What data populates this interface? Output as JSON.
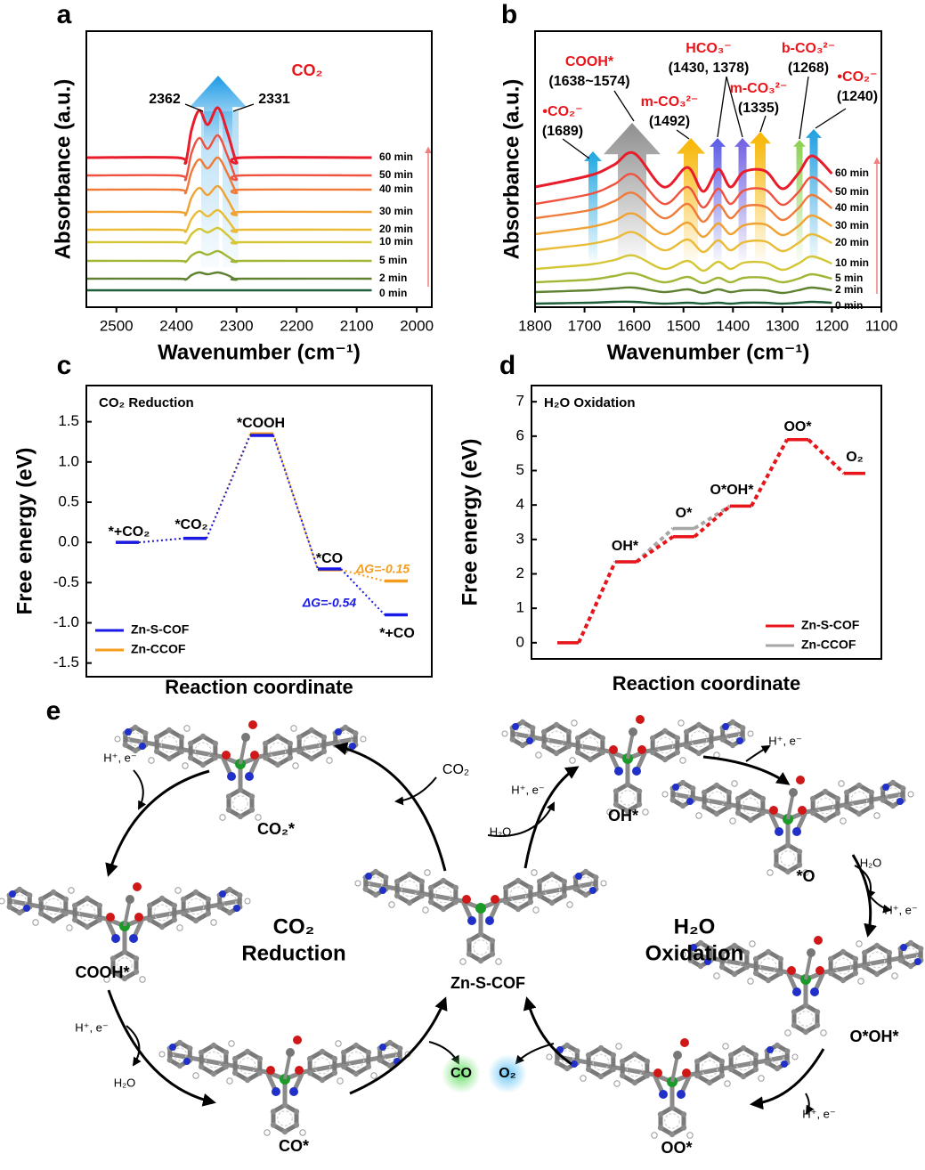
{
  "panels": [
    "a",
    "b",
    "c",
    "d",
    "e"
  ],
  "chart_data": [
    {
      "type": "spectra",
      "title": "CO₂",
      "x_label": "Wavenumber (cm⁻¹)",
      "y_label": "Absorbance (a.u.)",
      "peaks": [
        2362,
        2331
      ],
      "x": [
        2550,
        2400,
        2385,
        2375,
        2362,
        2348,
        2331,
        2315,
        2300,
        2290,
        2075
      ],
      "xlim": [
        2550,
        1975
      ],
      "xticks": [
        2500,
        2400,
        2300,
        2200,
        2100,
        2000
      ],
      "ylim": [
        0,
        310
      ],
      "series": [
        {
          "name": "0 min",
          "color": "#1f5e3a",
          "values": [
            19,
            19,
            19,
            19,
            19,
            19,
            19,
            19,
            19,
            19,
            19
          ]
        },
        {
          "name": "2 min",
          "color": "#5f8230",
          "values": [
            32,
            32,
            31,
            36,
            39,
            37,
            39,
            36,
            31,
            32,
            32
          ]
        },
        {
          "name": "5 min",
          "color": "#a2b636",
          "values": [
            52,
            52,
            51,
            58,
            62,
            59,
            63,
            57,
            51,
            52,
            52
          ]
        },
        {
          "name": "10 min",
          "color": "#d4c634",
          "values": [
            73,
            73,
            72,
            82,
            88,
            84,
            89,
            81,
            72,
            73,
            73
          ]
        },
        {
          "name": "20 min",
          "color": "#e9bb36",
          "values": [
            87,
            87,
            85,
            99,
            108,
            102,
            109,
            98,
            85,
            87,
            87
          ]
        },
        {
          "name": "30 min",
          "color": "#f0a232",
          "values": [
            107,
            107,
            104,
            123,
            134,
            126,
            136,
            121,
            104,
            107,
            107
          ]
        },
        {
          "name": "40 min",
          "color": "#f07a38",
          "values": [
            132,
            132,
            129,
            152,
            166,
            156,
            168,
            150,
            129,
            132,
            132
          ]
        },
        {
          "name": "50 min",
          "color": "#f05240",
          "values": [
            148,
            148,
            144,
            173,
            190,
            178,
            193,
            170,
            144,
            148,
            148
          ]
        },
        {
          "name": "60 min",
          "color": "#e81c2a",
          "values": [
            168,
            168,
            163,
            199,
            221,
            205,
            224,
            196,
            163,
            168,
            168
          ]
        }
      ]
    },
    {
      "type": "spectra",
      "x_label": "Wavenumber (cm⁻¹)",
      "y_label": "Absorbance (a.u.)",
      "annotations": [
        {
          "name": "•CO₂⁻",
          "position": "(1689)"
        },
        {
          "name": "COOH*",
          "position": "(1638~1574)"
        },
        {
          "name": "m-CO₃²⁻",
          "position": "(1492)"
        },
        {
          "name": "HCO₃⁻",
          "position": "(1430, 1378)"
        },
        {
          "name": "m-CO₃²⁻",
          "position": "(1335)"
        },
        {
          "name": "b-CO₃²⁻",
          "position": "(1268)"
        },
        {
          "name": "•CO₂⁻",
          "position": "(1240)"
        }
      ],
      "x": [
        1800,
        1689,
        1640,
        1600,
        1540,
        1492,
        1460,
        1430,
        1405,
        1378,
        1335,
        1300,
        1268,
        1240,
        1200
      ],
      "xlim": [
        1800,
        1100
      ],
      "xticks": [
        1800,
        1700,
        1600,
        1500,
        1400,
        1300,
        1200,
        1100
      ],
      "ylim": [
        0,
        310
      ],
      "series": [
        {
          "name": "0 min",
          "color": "#1f5e3a",
          "values": [
            4,
            5,
            6,
            6,
            4,
            5,
            4,
            5,
            4,
            5,
            5,
            4,
            5,
            6,
            5
          ]
        },
        {
          "name": "2 min",
          "color": "#5f8230",
          "values": [
            17,
            19,
            21,
            22,
            17,
            20,
            16,
            20,
            17,
            19,
            19,
            16,
            19,
            22,
            19
          ]
        },
        {
          "name": "5 min",
          "color": "#a2b636",
          "values": [
            28,
            31,
            35,
            38,
            28,
            34,
            27,
            33,
            28,
            33,
            33,
            28,
            32,
            37,
            32
          ]
        },
        {
          "name": "10 min",
          "color": "#d4c634",
          "values": [
            43,
            48,
            53,
            58,
            43,
            52,
            41,
            51,
            43,
            50,
            50,
            42,
            49,
            57,
            49
          ]
        },
        {
          "name": "20 min",
          "color": "#e9bb36",
          "values": [
            64,
            71,
            77,
            84,
            64,
            76,
            62,
            75,
            64,
            73,
            74,
            63,
            72,
            82,
            72
          ]
        },
        {
          "name": "30 min",
          "color": "#f0a232",
          "values": [
            82,
            90,
            97,
            105,
            82,
            95,
            79,
            94,
            82,
            92,
            93,
            81,
            91,
            103,
            91
          ]
        },
        {
          "name": "40 min",
          "color": "#f07a38",
          "values": [
            100,
            109,
            119,
            128,
            100,
            116,
            96,
            115,
            100,
            113,
            113,
            98,
            111,
            126,
            111
          ]
        },
        {
          "name": "50 min",
          "color": "#f05240",
          "values": [
            116,
            127,
            138,
            149,
            116,
            135,
            112,
            133,
            116,
            131,
            132,
            115,
            129,
            146,
            129
          ]
        },
        {
          "name": "60 min",
          "color": "#e81c2a",
          "values": [
            135,
            148,
            160,
            173,
            135,
            157,
            130,
            155,
            135,
            152,
            153,
            133,
            150,
            170,
            150
          ]
        }
      ]
    },
    {
      "type": "levels",
      "title": "CO₂ Reduction",
      "x_label": "Reaction coordinate",
      "y_label": "Free energy (eV)",
      "categories": [
        "*+CO₂",
        "*CO₂",
        "*COOH",
        "*CO",
        "*+CO"
      ],
      "ylim": [
        -1.67,
        1.95
      ],
      "yticks": [
        -1.5,
        {
          "value": -1,
          "label": "-1.0"
        },
        -0.5,
        {
          "value": 0,
          "label": "0.0"
        },
        0.5,
        {
          "value": 1,
          "label": "1.0"
        },
        1.5
      ],
      "legend": "lower left",
      "series": [
        {
          "name": "Zn-S-COF",
          "color": "#1a1ae6",
          "values": [
            0,
            0.05,
            1.33,
            -0.33,
            -0.9
          ],
          "delta_label": "ΔG=-0.54"
        },
        {
          "name": "Zn-CCOF",
          "color": "#f39c1e",
          "values": [
            0,
            0.05,
            1.35,
            -0.34,
            -0.48
          ],
          "delta_label": "ΔG=-0.15"
        }
      ]
    },
    {
      "type": "levels",
      "title": "H₂O Oxidation",
      "x_label": "Reaction coordinate",
      "y_label": "Free energy (eV)",
      "categories": [
        null,
        "OH*",
        "O*",
        "O*OH*",
        "OO*",
        "O₂"
      ],
      "ylim": [
        -0.47,
        7.47
      ],
      "yticks": [
        0,
        1,
        2,
        3,
        4,
        5,
        6,
        7
      ],
      "legend": "lower right",
      "series": [
        {
          "name": "Zn-S-COF",
          "color": "#e8151b",
          "values": [
            0,
            2.35,
            3.08,
            3.97,
            5.9,
            4.92
          ]
        },
        {
          "name": "Zn-CCOF",
          "color": "#a6a6a6",
          "values": [
            0,
            2.35,
            3.32,
            3.97,
            5.9,
            4.92
          ]
        }
      ]
    }
  ],
  "diagram": {
    "cycle_labels": [
      [
        "CO₂",
        "Reduction"
      ],
      [
        "H₂O",
        "Oxidation"
      ]
    ],
    "intermediates": [
      "CO₂*",
      "COOH*",
      "CO*",
      "Zn-S-COF",
      "OH*",
      "*O",
      "O*OH*",
      "OO*"
    ],
    "species": [
      "H⁺, e⁻",
      "CO₂",
      "H⁺, e⁻",
      "H₂O",
      "H⁺, e⁻",
      "H₂O",
      "H⁺, e⁻",
      "H⁺, e⁻",
      "H₂O",
      "H⁺, e⁻"
    ],
    "products": [
      "CO",
      "O₂"
    ]
  }
}
